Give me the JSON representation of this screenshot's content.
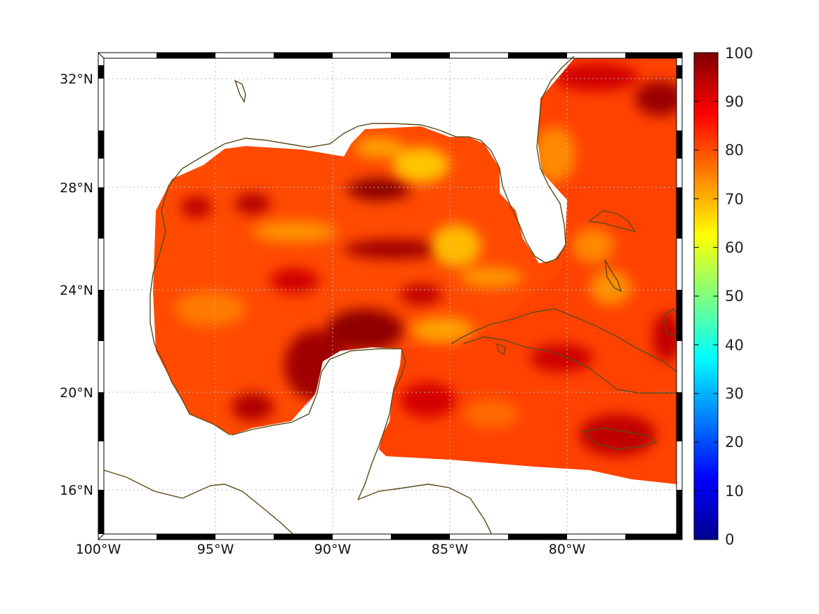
{
  "map": {
    "x_labels": [
      "100°W",
      "95°W",
      "90°W",
      "85°W",
      "80°W"
    ],
    "y_labels": [
      "32°N",
      "28°N",
      "24°N",
      "20°N",
      "16°N"
    ],
    "colorbar": {
      "ticks": [
        "100",
        "90",
        "80",
        "70",
        "60",
        "50",
        "40",
        "30",
        "20",
        "10",
        "0"
      ],
      "min": 0,
      "max": 100,
      "colormap": "jet"
    },
    "colors": {
      "coastline": "#5a4a1a",
      "dominant_field": "#ff4a00",
      "high_field": "#8b0000",
      "low_field": "#ffc000"
    }
  }
}
